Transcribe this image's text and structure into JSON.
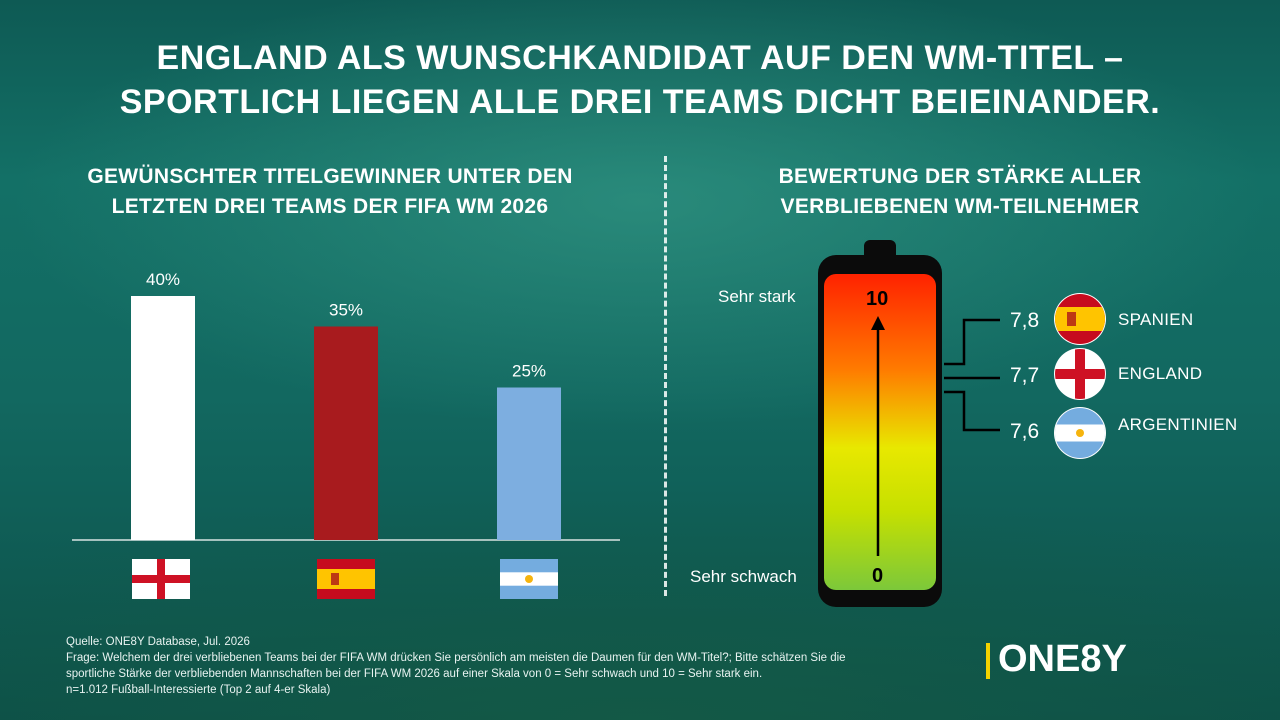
{
  "title": {
    "line1": "ENGLAND ALS WUNSCHKANDIDAT AUF DEN WM-TITEL –",
    "line2": "SPORTLICH LIEGEN ALLE DREI TEAMS DICHT BEIEINANDER."
  },
  "left_panel": {
    "subtitle_line1": "GEWÜNSCHTER TITELGEWINNER UNTER DEN",
    "subtitle_line2": "LETZTEN DREI TEAMS DER FIFA WM 2026"
  },
  "right_panel": {
    "subtitle_line1": "BEWERTUNG DER STÄRKE ALLER",
    "subtitle_line2": "VERBLIEBENEN  WM-TEILNEHMER",
    "scale_top_label": "Sehr stark",
    "scale_bottom_label": "Sehr schwach",
    "scale_top_value": "10",
    "scale_bottom_value": "0"
  },
  "chart_data": [
    {
      "type": "bar",
      "categories": [
        "England",
        "Spanien",
        "Argentinien"
      ],
      "values": [
        40,
        35,
        25
      ],
      "value_labels": [
        "40%",
        "35%",
        "25%"
      ],
      "colors": [
        "#ffffff",
        "#a81b1e",
        "#7daee0"
      ],
      "icons": [
        "england-flag",
        "spain-flag",
        "argentina-flag"
      ],
      "ylim": [
        0,
        40
      ]
    },
    {
      "type": "table",
      "scale": [
        0,
        10
      ],
      "rows": [
        {
          "team": "SPANIEN",
          "value": "7,8",
          "icon": "spain-flag"
        },
        {
          "team": "ENGLAND",
          "value": "7,7",
          "icon": "england-flag"
        },
        {
          "team": "ARGENTINIEN",
          "value": "7,6",
          "icon": "argentina-flag"
        }
      ]
    }
  ],
  "footnote": {
    "source": "Quelle: ONE8Y Database, Jul. 2026",
    "question_line1": "Frage: Welchem der drei verbliebenen Teams bei der FIFA WM drücken Sie persönlich am meisten die Daumen für den WM-Titel?; Bitte schätzen Sie die",
    "question_line2": "sportliche Stärke der verbliebenden Mannschaften bei der FIFA WM 2026 auf einer Skala von 0 = Sehr schwach und 10 = Sehr stark ein.",
    "sample": "n=1.012 Fußball-Interessierte (Top 2 auf 4-er Skala)"
  },
  "logo": {
    "text": "ONE8Y",
    "accent_color": "#f4d200"
  }
}
